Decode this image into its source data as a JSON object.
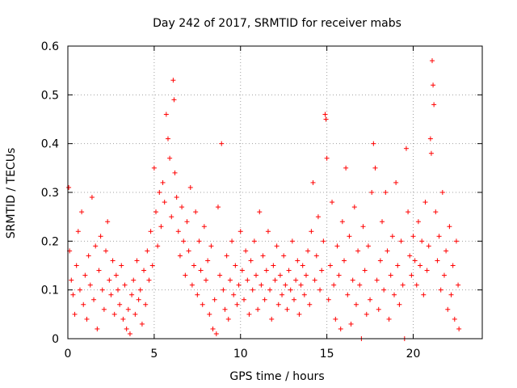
{
  "chart_data": {
    "type": "scatter",
    "title": "Day 242 of 2017, SRMTID for receiver mabs",
    "xlabel": "GPS time / hours",
    "ylabel": "SRMTID / TECUs",
    "xlim": [
      0,
      24
    ],
    "ylim": [
      0,
      0.6
    ],
    "xticks": [
      0,
      5,
      10,
      15,
      20
    ],
    "xtick_labels": [
      "0",
      "5",
      "10",
      "15",
      "20"
    ],
    "yticks": [
      0,
      0.1,
      0.2,
      0.3,
      0.4,
      0.5,
      0.6
    ],
    "ytick_labels": [
      "0",
      "0.1",
      "0.2",
      "0.3",
      "0.4",
      "0.5",
      "0.6"
    ],
    "grid": true,
    "marker": "+",
    "series": [
      {
        "name": "SRMTID",
        "color": "#ff0000",
        "points": [
          [
            0.05,
            0.31
          ],
          [
            0.1,
            0.18
          ],
          [
            0.2,
            0.12
          ],
          [
            0.3,
            0.09
          ],
          [
            0.4,
            0.05
          ],
          [
            0.5,
            0.15
          ],
          [
            0.6,
            0.22
          ],
          [
            0.7,
            0.1
          ],
          [
            0.8,
            0.26
          ],
          [
            0.9,
            0.07
          ],
          [
            1.0,
            0.13
          ],
          [
            1.1,
            0.04
          ],
          [
            1.2,
            0.17
          ],
          [
            1.3,
            0.11
          ],
          [
            1.4,
            0.29
          ],
          [
            1.5,
            0.08
          ],
          [
            1.6,
            0.19
          ],
          [
            1.7,
            0.02
          ],
          [
            1.8,
            0.14
          ],
          [
            1.9,
            0.21
          ],
          [
            2.0,
            0.1
          ],
          [
            2.1,
            0.06
          ],
          [
            2.2,
            0.18
          ],
          [
            2.3,
            0.24
          ],
          [
            2.4,
            0.12
          ],
          [
            2.5,
            0.09
          ],
          [
            2.6,
            0.16
          ],
          [
            2.7,
            0.05
          ],
          [
            2.8,
            0.13
          ],
          [
            2.9,
            0.1
          ],
          [
            3.0,
            0.07
          ],
          [
            3.1,
            0.15
          ],
          [
            3.2,
            0.04
          ],
          [
            3.3,
            0.11
          ],
          [
            3.4,
            0.02
          ],
          [
            3.5,
            0.06
          ],
          [
            3.6,
            0.01
          ],
          [
            3.7,
            0.09
          ],
          [
            3.8,
            0.12
          ],
          [
            3.9,
            0.05
          ],
          [
            4.0,
            0.16
          ],
          [
            4.1,
            0.08
          ],
          [
            4.2,
            0.1
          ],
          [
            4.3,
            0.03
          ],
          [
            4.4,
            0.14
          ],
          [
            4.5,
            0.07
          ],
          [
            4.6,
            0.18
          ],
          [
            4.7,
            0.12
          ],
          [
            4.8,
            0.22
          ],
          [
            4.9,
            0.15
          ],
          [
            5.0,
            0.35
          ],
          [
            5.1,
            0.26
          ],
          [
            5.2,
            0.19
          ],
          [
            5.3,
            0.3
          ],
          [
            5.4,
            0.23
          ],
          [
            5.5,
            0.32
          ],
          [
            5.6,
            0.28
          ],
          [
            5.7,
            0.46
          ],
          [
            5.8,
            0.41
          ],
          [
            5.9,
            0.37
          ],
          [
            6.0,
            0.25
          ],
          [
            6.1,
            0.53
          ],
          [
            6.15,
            0.49
          ],
          [
            6.2,
            0.34
          ],
          [
            6.3,
            0.29
          ],
          [
            6.4,
            0.22
          ],
          [
            6.5,
            0.17
          ],
          [
            6.6,
            0.27
          ],
          [
            6.7,
            0.2
          ],
          [
            6.8,
            0.13
          ],
          [
            6.9,
            0.24
          ],
          [
            7.0,
            0.18
          ],
          [
            7.1,
            0.31
          ],
          [
            7.2,
            0.11
          ],
          [
            7.3,
            0.15
          ],
          [
            7.4,
            0.26
          ],
          [
            7.5,
            0.09
          ],
          [
            7.6,
            0.2
          ],
          [
            7.7,
            0.14
          ],
          [
            7.8,
            0.07
          ],
          [
            7.9,
            0.23
          ],
          [
            8.0,
            0.12
          ],
          [
            8.1,
            0.16
          ],
          [
            8.2,
            0.05
          ],
          [
            8.3,
            0.19
          ],
          [
            8.4,
            0.02
          ],
          [
            8.5,
            0.08
          ],
          [
            8.6,
            0.01
          ],
          [
            8.7,
            0.27
          ],
          [
            8.8,
            0.13
          ],
          [
            8.9,
            0.4
          ],
          [
            9.0,
            0.1
          ],
          [
            9.1,
            0.06
          ],
          [
            9.2,
            0.17
          ],
          [
            9.3,
            0.04
          ],
          [
            9.4,
            0.12
          ],
          [
            9.5,
            0.2
          ],
          [
            9.6,
            0.09
          ],
          [
            9.7,
            0.15
          ],
          [
            9.8,
            0.07
          ],
          [
            9.9,
            0.11
          ],
          [
            10.0,
            0.22
          ],
          [
            10.1,
            0.14
          ],
          [
            10.2,
            0.08
          ],
          [
            10.3,
            0.18
          ],
          [
            10.4,
            0.12
          ],
          [
            10.5,
            0.05
          ],
          [
            10.6,
            0.16
          ],
          [
            10.7,
            0.1
          ],
          [
            10.8,
            0.2
          ],
          [
            10.9,
            0.13
          ],
          [
            11.0,
            0.06
          ],
          [
            11.1,
            0.26
          ],
          [
            11.2,
            0.11
          ],
          [
            11.3,
            0.17
          ],
          [
            11.4,
            0.08
          ],
          [
            11.5,
            0.14
          ],
          [
            11.6,
            0.22
          ],
          [
            11.7,
            0.1
          ],
          [
            11.8,
            0.04
          ],
          [
            11.9,
            0.15
          ],
          [
            12.0,
            0.12
          ],
          [
            12.1,
            0.19
          ],
          [
            12.2,
            0.07
          ],
          [
            12.3,
            0.13
          ],
          [
            12.4,
            0.09
          ],
          [
            12.5,
            0.17
          ],
          [
            12.6,
            0.11
          ],
          [
            12.7,
            0.06
          ],
          [
            12.8,
            0.14
          ],
          [
            12.9,
            0.1
          ],
          [
            13.0,
            0.2
          ],
          [
            13.1,
            0.08
          ],
          [
            13.2,
            0.12
          ],
          [
            13.3,
            0.16
          ],
          [
            13.4,
            0.05
          ],
          [
            13.5,
            0.11
          ],
          [
            13.6,
            0.15
          ],
          [
            13.7,
            0.09
          ],
          [
            13.8,
            0.13
          ],
          [
            13.9,
            0.18
          ],
          [
            14.0,
            0.07
          ],
          [
            14.1,
            0.22
          ],
          [
            14.2,
            0.32
          ],
          [
            14.3,
            0.12
          ],
          [
            14.4,
            0.17
          ],
          [
            14.5,
            0.25
          ],
          [
            14.6,
            0.1
          ],
          [
            14.7,
            0.14
          ],
          [
            14.8,
            0.2
          ],
          [
            14.9,
            0.46
          ],
          [
            14.95,
            0.45
          ],
          [
            15.0,
            0.37
          ],
          [
            15.1,
            0.08
          ],
          [
            15.2,
            0.15
          ],
          [
            15.3,
            0.28
          ],
          [
            15.4,
            0.11
          ],
          [
            15.5,
            0.04
          ],
          [
            15.6,
            0.19
          ],
          [
            15.7,
            0.13
          ],
          [
            15.8,
            0.02
          ],
          [
            15.9,
            0.24
          ],
          [
            16.0,
            0.16
          ],
          [
            16.1,
            0.35
          ],
          [
            16.2,
            0.09
          ],
          [
            16.3,
            0.21
          ],
          [
            16.4,
            0.03
          ],
          [
            16.5,
            0.12
          ],
          [
            16.6,
            0.27
          ],
          [
            16.7,
            0.07
          ],
          [
            16.8,
            0.18
          ],
          [
            16.9,
            0.11
          ],
          [
            17.0,
            0.0
          ],
          [
            17.1,
            0.23
          ],
          [
            17.2,
            0.14
          ],
          [
            17.3,
            0.05
          ],
          [
            17.4,
            0.19
          ],
          [
            17.5,
            0.08
          ],
          [
            17.6,
            0.3
          ],
          [
            17.7,
            0.4
          ],
          [
            17.8,
            0.35
          ],
          [
            17.9,
            0.12
          ],
          [
            18.0,
            0.06
          ],
          [
            18.1,
            0.16
          ],
          [
            18.2,
            0.24
          ],
          [
            18.3,
            0.1
          ],
          [
            18.4,
            0.3
          ],
          [
            18.5,
            0.18
          ],
          [
            18.6,
            0.04
          ],
          [
            18.7,
            0.13
          ],
          [
            18.8,
            0.21
          ],
          [
            18.9,
            0.09
          ],
          [
            19.0,
            0.32
          ],
          [
            19.1,
            0.15
          ],
          [
            19.2,
            0.07
          ],
          [
            19.3,
            0.2
          ],
          [
            19.4,
            0.11
          ],
          [
            19.5,
            0.0
          ],
          [
            19.6,
            0.39
          ],
          [
            19.7,
            0.26
          ],
          [
            19.8,
            0.17
          ],
          [
            19.9,
            0.13
          ],
          [
            20.0,
            0.21
          ],
          [
            20.1,
            0.16
          ],
          [
            20.2,
            0.11
          ],
          [
            20.3,
            0.24
          ],
          [
            20.4,
            0.15
          ],
          [
            20.5,
            0.2
          ],
          [
            20.6,
            0.09
          ],
          [
            20.7,
            0.28
          ],
          [
            20.8,
            0.14
          ],
          [
            20.9,
            0.19
          ],
          [
            21.0,
            0.41
          ],
          [
            21.05,
            0.38
          ],
          [
            21.1,
            0.57
          ],
          [
            21.15,
            0.52
          ],
          [
            21.2,
            0.48
          ],
          [
            21.3,
            0.26
          ],
          [
            21.4,
            0.16
          ],
          [
            21.5,
            0.21
          ],
          [
            21.6,
            0.1
          ],
          [
            21.7,
            0.3
          ],
          [
            21.8,
            0.13
          ],
          [
            21.9,
            0.18
          ],
          [
            22.0,
            0.06
          ],
          [
            22.1,
            0.23
          ],
          [
            22.2,
            0.09
          ],
          [
            22.3,
            0.15
          ],
          [
            22.4,
            0.04
          ],
          [
            22.5,
            0.2
          ],
          [
            22.6,
            0.11
          ],
          [
            22.65,
            0.02
          ]
        ]
      }
    ]
  }
}
